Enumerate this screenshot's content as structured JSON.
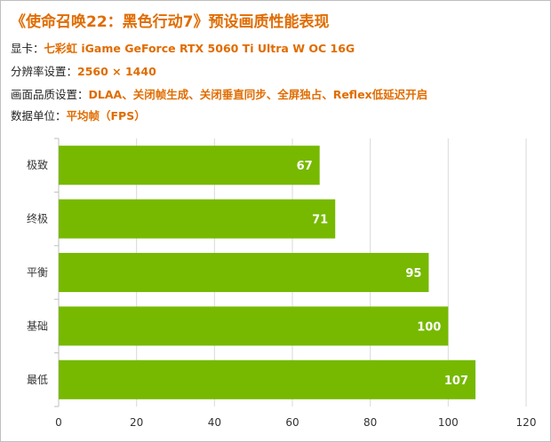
{
  "header": {
    "title": "《使命召唤22：黑色行动7》预设画质性能表现",
    "rows": [
      {
        "label": "显卡：",
        "value": "七彩虹 iGame GeForce RTX 5060 Ti Ultra W OC 16G"
      },
      {
        "label": "分辨率设置：",
        "value": "2560 × 1440"
      },
      {
        "label": "画面品质设置：",
        "value": "DLAA、关闭帧生成、关闭垂直同步、全屏独占、Reflex低延迟开启"
      },
      {
        "label": "数据单位：",
        "value": "平均帧（FPS）"
      }
    ]
  },
  "chart_data": {
    "type": "bar",
    "orientation": "horizontal",
    "categories": [
      "极致",
      "终极",
      "平衡",
      "基础",
      "最低"
    ],
    "values": [
      67,
      71,
      95,
      100,
      107
    ],
    "xlim": [
      0,
      120
    ],
    "xticks": [
      0,
      20,
      40,
      60,
      80,
      100,
      120
    ],
    "grid": true,
    "bar_color": "#76b900"
  }
}
